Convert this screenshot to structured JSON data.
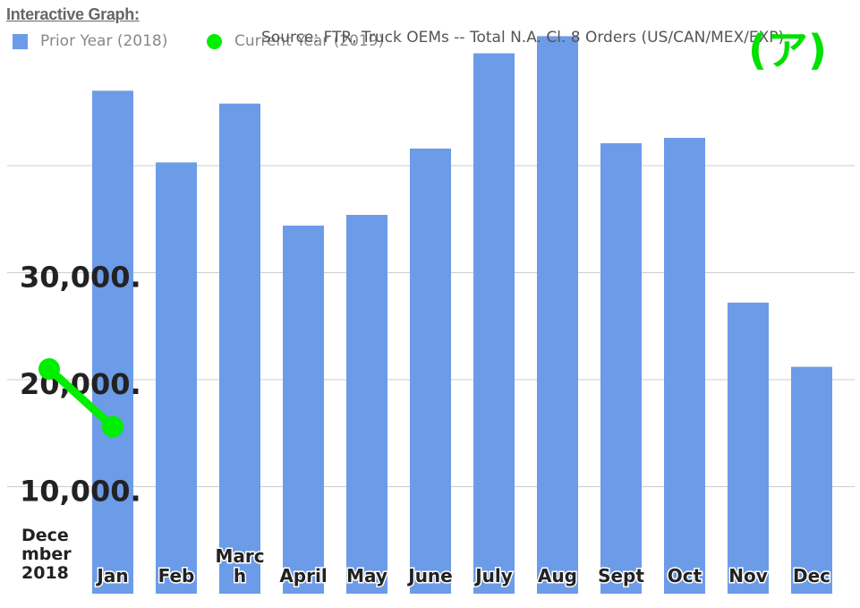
{
  "header": {
    "title": "Interactive Graph:"
  },
  "legend": {
    "prior": "Prior Year (2018)",
    "current": "Current Year (2019)"
  },
  "source": "Source: FTR, Truck OEMs -- Total N.A. Cl. 8 Orders (US/CAN/MEX/EXP)",
  "corner_label": "(ア)",
  "colors": {
    "prior": "#6c9be8",
    "current": "#00ee00",
    "grid": "#cccccc"
  },
  "chart_data": {
    "type": "bar",
    "title": "",
    "xlabel": "",
    "ylabel": "",
    "categories": [
      "Jan",
      "Feb",
      "March",
      "April",
      "May",
      "June",
      "July",
      "Aug",
      "Sept",
      "Oct",
      "Nov",
      "Dec"
    ],
    "category_labels": [
      [
        "Jan"
      ],
      [
        "Feb"
      ],
      [
        "Marc",
        "h"
      ],
      [
        "April"
      ],
      [
        "May"
      ],
      [
        "June"
      ],
      [
        "July"
      ],
      [
        "Aug"
      ],
      [
        "Sept"
      ],
      [
        "Oct"
      ],
      [
        "Nov"
      ],
      [
        "Dec"
      ]
    ],
    "x_caption": [
      "Dece",
      "mber",
      "2018"
    ],
    "ylim": [
      0,
      53000
    ],
    "grid": true,
    "y_ticks": [
      10000,
      20000,
      30000,
      40000
    ],
    "y_tick_labels": [
      "10,000.",
      "20,000.",
      "30,000.",
      ""
    ],
    "series": [
      {
        "name": "Prior Year (2018)",
        "type": "bar",
        "values": [
          47000,
          40300,
          45800,
          34400,
          35400,
          41600,
          50500,
          52100,
          42100,
          42600,
          27200,
          21200
        ]
      },
      {
        "name": "Current Year (2019)",
        "type": "line",
        "x": [
          "December 2018",
          "Jan"
        ],
        "values": [
          21000,
          15600
        ]
      }
    ]
  }
}
